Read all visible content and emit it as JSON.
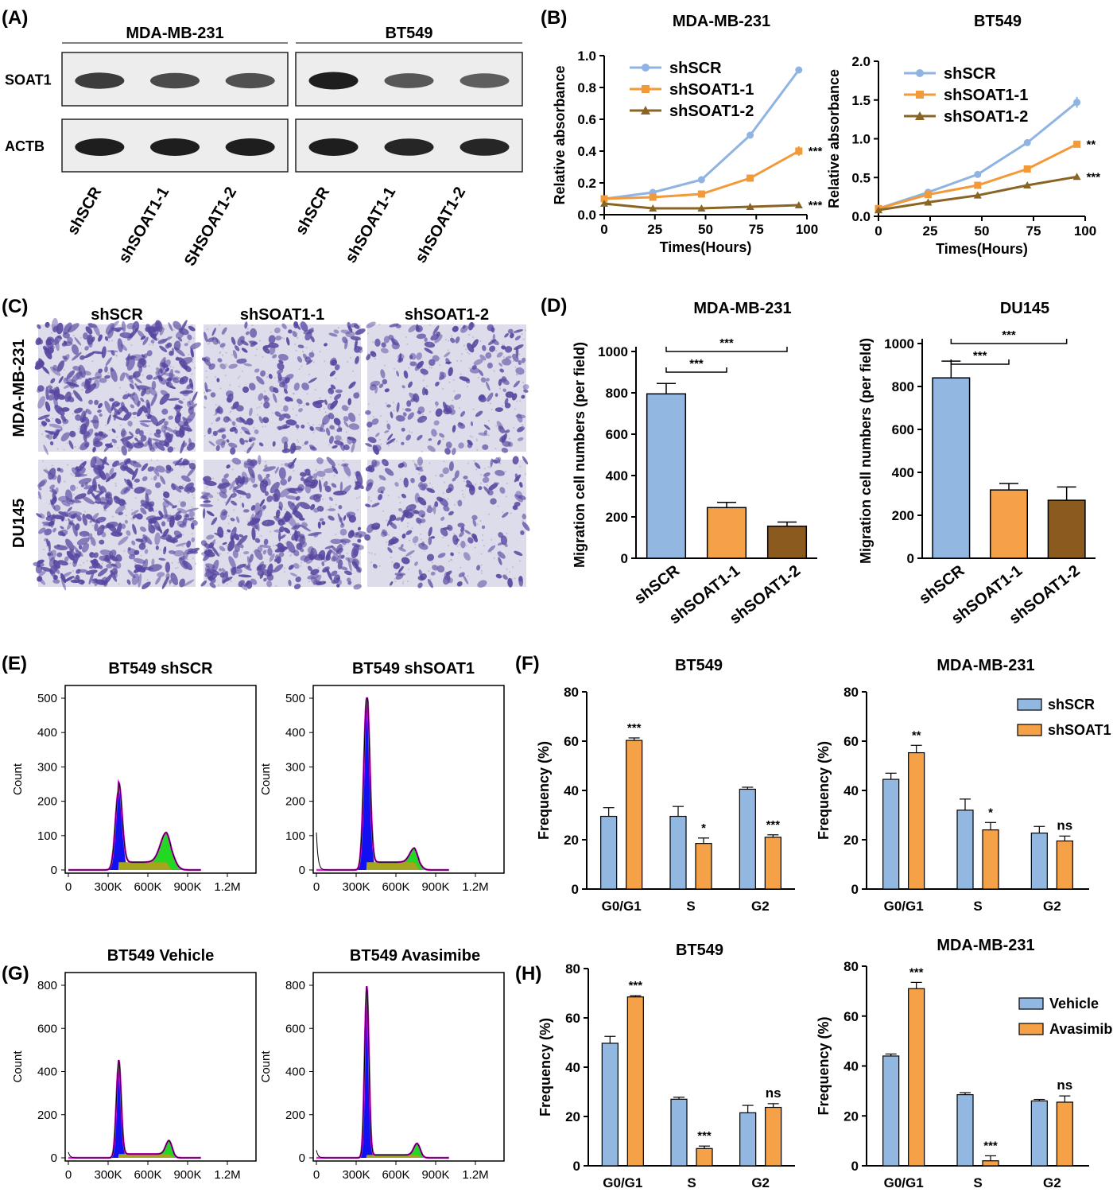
{
  "colors": {
    "blue": "#92B8E2",
    "orange": "#F4A148",
    "brown": "#8B5A1E",
    "blueLine": "#8FB4E3",
    "orangeLine": "#F29A3A",
    "brownLine": "#8A6424",
    "stain": "#5846A0",
    "histBlue": "#1010F0",
    "histGreen": "#22D822",
    "histOlive": "#A5A51E",
    "histMagenta": "#E21CE0"
  },
  "panels": {
    "A": {
      "label": "(A)",
      "groups": [
        "MDA-MB-231",
        "BT549"
      ],
      "rows": [
        "SOAT1",
        "ACTB"
      ],
      "lanes": [
        "shSCR",
        "shSOAT1-1",
        "SHSOAT1-2",
        "shSCR",
        "shSOAT1-1",
        "shSOAT1-2"
      ],
      "band_intensity": {
        "SOAT1": [
          0.8,
          0.7,
          0.65,
          1.0,
          0.6,
          0.55
        ],
        "ACTB": [
          1.0,
          1.0,
          1.0,
          1.0,
          0.95,
          0.95
        ]
      }
    },
    "B": {
      "label": "(B)"
    },
    "C": {
      "label": "(C)",
      "columns": [
        "shSCR",
        "shSOAT1-1",
        "shSOAT1-2"
      ],
      "rows": [
        "MDA-MB-231",
        "DU145"
      ],
      "density": [
        [
          0.9,
          0.45,
          0.4
        ],
        [
          0.85,
          0.8,
          0.35
        ]
      ]
    },
    "D": {
      "label": "(D)"
    },
    "E": {
      "label": "(E)"
    },
    "F": {
      "label": "(F)"
    },
    "G": {
      "label": "(G)"
    },
    "H": {
      "label": "(H)"
    }
  },
  "chart_data": [
    {
      "type": "line",
      "panel": "B",
      "title": "MDA-MB-231",
      "xlabel": "Times(Hours)",
      "ylabel": "Relative absorbance",
      "x": [
        0,
        24,
        48,
        72,
        96
      ],
      "xlim": [
        0,
        100
      ],
      "ylim": [
        0,
        1.0
      ],
      "xticks": [
        "0",
        "25",
        "50",
        "75",
        "100"
      ],
      "yticks": [
        "0.0",
        "0.2",
        "0.4",
        "0.6",
        "0.8",
        "1.0"
      ],
      "legend": "top-left",
      "series": [
        {
          "name": "shSCR",
          "values": [
            0.1,
            0.14,
            0.22,
            0.5,
            0.91
          ],
          "err": [
            0.01,
            0.01,
            0.01,
            0.01,
            0.01
          ],
          "marker": "circle",
          "sig": ""
        },
        {
          "name": "shSOAT1-1",
          "values": [
            0.1,
            0.11,
            0.13,
            0.23,
            0.4
          ],
          "err": [
            0.01,
            0.01,
            0.01,
            0.01,
            0.03
          ],
          "marker": "square",
          "sig": "***"
        },
        {
          "name": "shSOAT1-2",
          "values": [
            0.07,
            0.04,
            0.04,
            0.05,
            0.06
          ],
          "err": [
            0.01,
            0.01,
            0.01,
            0.01,
            0.01
          ],
          "marker": "triangle",
          "sig": "***"
        }
      ]
    },
    {
      "type": "line",
      "panel": "B",
      "title": "BT549",
      "xlabel": "Times(Hours)",
      "ylabel": "Relative absorbance",
      "x": [
        0,
        24,
        48,
        72,
        96
      ],
      "xlim": [
        0,
        100
      ],
      "ylim": [
        0,
        2.0
      ],
      "xticks": [
        "0",
        "25",
        "50",
        "75",
        "100"
      ],
      "yticks": [
        "0.0",
        "0.5",
        "1.0",
        "1.5",
        "2.0"
      ],
      "legend": "top-left",
      "series": [
        {
          "name": "shSCR",
          "values": [
            0.1,
            0.31,
            0.54,
            0.95,
            1.47
          ],
          "err": [
            0.01,
            0.01,
            0.01,
            0.01,
            0.07
          ],
          "marker": "circle",
          "sig": ""
        },
        {
          "name": "shSOAT1-1",
          "values": [
            0.1,
            0.28,
            0.4,
            0.61,
            0.93
          ],
          "err": [
            0.01,
            0.01,
            0.01,
            0.01,
            0.02
          ],
          "marker": "square",
          "sig": "**"
        },
        {
          "name": "shSOAT1-2",
          "values": [
            0.08,
            0.18,
            0.27,
            0.4,
            0.51
          ],
          "err": [
            0.01,
            0.01,
            0.01,
            0.01,
            0.01
          ],
          "marker": "triangle",
          "sig": "***"
        }
      ]
    },
    {
      "type": "bar",
      "panel": "D",
      "title": "MDA-MB-231",
      "ylabel": "Migration cell numbers (per field)",
      "categories": [
        "shSCR",
        "shSOAT1-1",
        "shSOAT1-2"
      ],
      "values": [
        795,
        245,
        155
      ],
      "err": [
        50,
        25,
        20
      ],
      "ylim": [
        0,
        1000
      ],
      "yticks": [
        "0",
        "200",
        "400",
        "600",
        "800",
        "1000"
      ],
      "brackets": [
        {
          "from": 0,
          "to": 1,
          "label": "***"
        },
        {
          "from": 0,
          "to": 2,
          "label": "***"
        }
      ]
    },
    {
      "type": "bar",
      "panel": "D",
      "title": "DU145",
      "ylabel": "Migration cell numbers (per field)",
      "categories": [
        "shSCR",
        "shSOAT1-1",
        "shSOAT1-2"
      ],
      "values": [
        840,
        318,
        270
      ],
      "err": [
        78,
        30,
        62
      ],
      "ylim": [
        0,
        1000
      ],
      "yticks": [
        "0",
        "200",
        "400",
        "600",
        "800",
        "1000"
      ],
      "brackets": [
        {
          "from": 0,
          "to": 1,
          "label": "***"
        },
        {
          "from": 0,
          "to": 2,
          "label": "***"
        }
      ]
    },
    {
      "type": "area",
      "panel": "E",
      "title": "BT549 shSCR",
      "ylabel": "Count",
      "xlim": [
        0,
        1200
      ],
      "ylim": [
        0,
        550
      ],
      "xticks": [
        "0",
        "300K",
        "600K",
        "900K",
        "1.2M"
      ],
      "yticks": [
        "0",
        "100",
        "200",
        "300",
        "400",
        "500"
      ],
      "g1_peak": {
        "x": 380,
        "height": 255,
        "width": 25
      },
      "g2_peak": {
        "x": 740,
        "height": 95,
        "width": 45
      },
      "s_level": 25,
      "debris": 0
    },
    {
      "type": "area",
      "panel": "E",
      "title": "BT549 shSOAT1",
      "ylabel": "Count",
      "xlim": [
        0,
        1200
      ],
      "ylim": [
        0,
        550
      ],
      "xticks": [
        "0",
        "300K",
        "600K",
        "900K",
        "1.2M"
      ],
      "yticks": [
        "0",
        "100",
        "200",
        "300",
        "400",
        "500"
      ],
      "g1_peak": {
        "x": 380,
        "height": 550,
        "width": 22
      },
      "g2_peak": {
        "x": 740,
        "height": 45,
        "width": 35
      },
      "s_level": 25,
      "debris": 120
    },
    {
      "type": "bar",
      "panel": "F",
      "title": "BT549",
      "ylabel": "Frequency (%)",
      "categories": [
        "G0/G1",
        "S",
        "G2"
      ],
      "series": [
        {
          "name": "shSCR",
          "values": [
            29.5,
            29.5,
            40.5
          ],
          "err": [
            3.5,
            4,
            0.8
          ]
        },
        {
          "name": "shSOAT1",
          "values": [
            60.3,
            18.5,
            21
          ],
          "err": [
            1,
            2.2,
            1
          ]
        }
      ],
      "sig": [
        "***",
        "*",
        "***"
      ],
      "ylim": [
        0,
        80
      ],
      "yticks": [
        "0",
        "20",
        "40",
        "60",
        "80"
      ]
    },
    {
      "type": "bar",
      "panel": "F",
      "title": "MDA-MB-231",
      "ylabel": "Frequency (%)",
      "categories": [
        "G0/G1",
        "S",
        "G2"
      ],
      "series": [
        {
          "name": "shSCR",
          "values": [
            44.5,
            32,
            22.7
          ],
          "err": [
            2.5,
            4.5,
            2.7
          ]
        },
        {
          "name": "shSOAT1",
          "values": [
            55.3,
            24,
            19.5
          ],
          "err": [
            3,
            3,
            2
          ]
        }
      ],
      "sig": [
        "**",
        "*",
        "ns"
      ],
      "legend": "top-right",
      "ylim": [
        0,
        80
      ],
      "yticks": [
        "0",
        "20",
        "40",
        "60",
        "80"
      ]
    },
    {
      "type": "area",
      "panel": "G",
      "title": "BT549 Vehicle",
      "ylabel": "Count",
      "xlim": [
        0,
        1200
      ],
      "ylim": [
        0,
        900
      ],
      "xticks": [
        "0",
        "300K",
        "600K",
        "900K",
        "1.2M"
      ],
      "yticks": [
        "0",
        "200",
        "400",
        "600",
        "800"
      ],
      "g1_peak": {
        "x": 380,
        "height": 490,
        "width": 18
      },
      "g2_peak": {
        "x": 760,
        "height": 70,
        "width": 25
      },
      "s_level": 20,
      "debris": 30
    },
    {
      "type": "area",
      "panel": "G",
      "title": "BT549 Avasimibe",
      "ylabel": "Count",
      "xlim": [
        0,
        1200
      ],
      "ylim": [
        0,
        900
      ],
      "xticks": [
        "0",
        "300K",
        "600K",
        "900K",
        "1.2M"
      ],
      "yticks": [
        "0",
        "200",
        "400",
        "600",
        "800"
      ],
      "g1_peak": {
        "x": 380,
        "height": 880,
        "width": 16
      },
      "g2_peak": {
        "x": 760,
        "height": 60,
        "width": 25
      },
      "s_level": 15,
      "debris": 40
    },
    {
      "type": "bar",
      "panel": "H",
      "title": "BT549",
      "ylabel": "Frequency (%)",
      "categories": [
        "G0/G1",
        "S",
        "G2"
      ],
      "series": [
        {
          "name": "Vehicle",
          "values": [
            49.7,
            27,
            21.5
          ],
          "err": [
            2.8,
            0.8,
            3
          ]
        },
        {
          "name": "Avasimibe",
          "values": [
            68.5,
            7,
            23.7
          ],
          "err": [
            0.5,
            1,
            1.5
          ]
        }
      ],
      "sig": [
        "***",
        "***",
        "ns"
      ],
      "ylim": [
        0,
        80
      ],
      "yticks": [
        "0",
        "20",
        "40",
        "60",
        "80"
      ]
    },
    {
      "type": "bar",
      "panel": "H",
      "title": "MDA-MB-231",
      "ylabel": "Frequency (%)",
      "categories": [
        "G0/G1",
        "S",
        "G2"
      ],
      "series": [
        {
          "name": "Vehicle",
          "values": [
            44,
            28.5,
            26
          ],
          "err": [
            0.8,
            0.8,
            0.6
          ]
        },
        {
          "name": "Avasimibe",
          "values": [
            71,
            2,
            25.5
          ],
          "err": [
            2.5,
            2,
            2.5
          ]
        }
      ],
      "sig": [
        "***",
        "***",
        "ns"
      ],
      "legend": "top-right",
      "ylim": [
        0,
        80
      ],
      "yticks": [
        "0",
        "20",
        "40",
        "60",
        "80"
      ]
    }
  ]
}
